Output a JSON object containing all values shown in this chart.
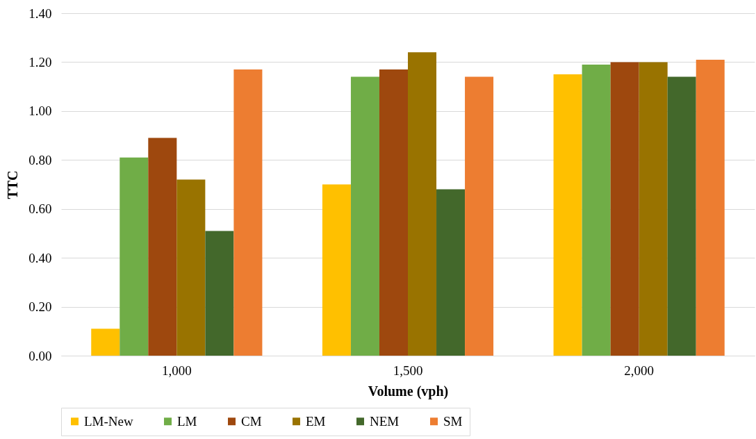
{
  "chart_data": {
    "type": "bar",
    "xlabel": "Volume (vph)",
    "ylabel": "TTC",
    "categories": [
      "1,000",
      "1,500",
      "2,000"
    ],
    "series": [
      {
        "name": "LM-New",
        "color": "#ffc000",
        "values": [
          0.11,
          0.7,
          1.15
        ]
      },
      {
        "name": "LM",
        "color": "#70ad47",
        "values": [
          0.81,
          1.14,
          1.19
        ]
      },
      {
        "name": "CM",
        "color": "#9e480e",
        "values": [
          0.89,
          1.17,
          1.2
        ]
      },
      {
        "name": "EM",
        "color": "#997300",
        "values": [
          0.72,
          1.24,
          1.2
        ]
      },
      {
        "name": "NEM",
        "color": "#43682b",
        "values": [
          0.51,
          0.68,
          1.14
        ]
      },
      {
        "name": "SM",
        "color": "#ed7d31",
        "values": [
          1.17,
          1.14,
          1.21
        ]
      }
    ],
    "ylim": [
      0,
      1.4
    ],
    "yticks": [
      {
        "value": 0,
        "label": "0.00"
      },
      {
        "value": 0.2,
        "label": "0.20"
      },
      {
        "value": 0.4,
        "label": "0.40"
      },
      {
        "value": 0.6,
        "label": "0.60"
      },
      {
        "value": 0.8,
        "label": "0.80"
      },
      {
        "value": 1.0,
        "label": "1.00"
      },
      {
        "value": 1.2,
        "label": "1.20"
      },
      {
        "value": 1.4,
        "label": "1.40"
      }
    ],
    "grid": "y",
    "legend": "bottom"
  }
}
